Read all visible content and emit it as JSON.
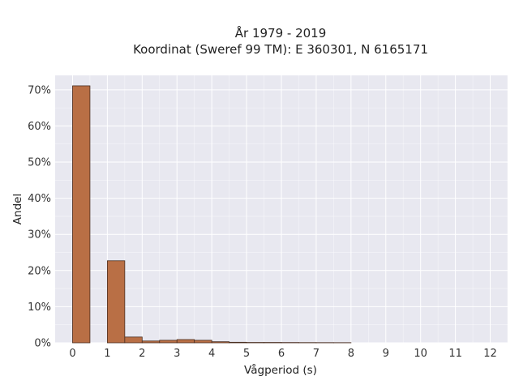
{
  "chart_data": {
    "type": "bar",
    "title": "År 1979 - 2019",
    "subtitle": "Koordinat (Sweref 99 TM): E 360301, N 6165171",
    "xlabel": "Vågperiod (s)",
    "ylabel": "Andel",
    "xlim": [
      -0.5,
      12.5
    ],
    "ylim": [
      0,
      0.74
    ],
    "x_ticks": [
      "0",
      "1",
      "2",
      "3",
      "4",
      "5",
      "6",
      "7",
      "8",
      "9",
      "10",
      "11",
      "12"
    ],
    "y_ticks": [
      "0%",
      "10%",
      "20%",
      "30%",
      "40%",
      "50%",
      "60%",
      "70%"
    ],
    "bin_width": 0.5,
    "bins": [
      {
        "start": 0.0,
        "value": 0.711
      },
      {
        "start": 0.5,
        "value": 0.0
      },
      {
        "start": 1.0,
        "value": 0.227
      },
      {
        "start": 1.5,
        "value": 0.016
      },
      {
        "start": 2.0,
        "value": 0.005
      },
      {
        "start": 2.5,
        "value": 0.007
      },
      {
        "start": 3.0,
        "value": 0.009
      },
      {
        "start": 3.5,
        "value": 0.007
      },
      {
        "start": 4.0,
        "value": 0.003
      },
      {
        "start": 4.5,
        "value": 0.0015
      },
      {
        "start": 5.0,
        "value": 0.001
      },
      {
        "start": 5.5,
        "value": 0.001
      },
      {
        "start": 6.0,
        "value": 0.0008
      },
      {
        "start": 6.5,
        "value": 0.0006
      },
      {
        "start": 7.0,
        "value": 0.0005
      },
      {
        "start": 7.5,
        "value": 0.0004
      }
    ],
    "grid": true,
    "colors": {
      "bar_fill": "#b96f45",
      "bar_stroke": "#4a2e20",
      "plot_bg": "#e8e8f0",
      "grid": "#ffffff"
    }
  }
}
